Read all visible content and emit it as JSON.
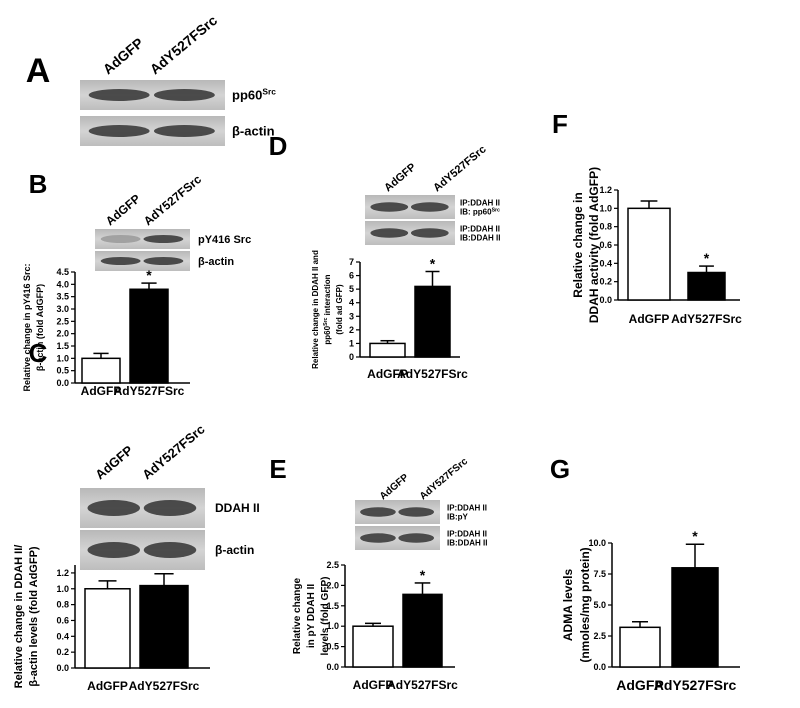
{
  "chart_data": [
    {
      "type": "blot",
      "panel": "A",
      "lanes": [
        "AdGFP",
        "AdY527FSrc"
      ],
      "blot_labels": [
        [
          [
            "pp60",
            "Src"
          ]
        ],
        [
          "β-actin"
        ]
      ]
    },
    {
      "type": "bar",
      "panel": "B",
      "lanes": [
        "AdGFP",
        "AdY527FSrc"
      ],
      "blot_labels": [
        [
          "pY416 Src"
        ],
        [
          "β-actin"
        ]
      ],
      "ylabel": [
        "Relative change in pY416 Src:",
        "β-actin (fold AdGFP)"
      ],
      "categories": [
        "AdGFP",
        "AdY527FSrc"
      ],
      "values": [
        1.0,
        3.8
      ],
      "errors": [
        0.2,
        0.25
      ],
      "value_annotations": [
        null,
        "*"
      ],
      "colors": [
        "#ffffff",
        "#000000"
      ],
      "ylim": [
        0,
        4.5
      ],
      "yticks": [
        {
          "value": 0,
          "label": "0.0"
        },
        {
          "value": 0.5,
          "label": "0.5"
        },
        {
          "value": 1,
          "label": "1.0"
        },
        {
          "value": 1.5,
          "label": "1.5"
        },
        {
          "value": 2,
          "label": "2.0"
        },
        {
          "value": 2.5,
          "label": "2.5"
        },
        {
          "value": 3,
          "label": "3.0"
        },
        {
          "value": 3.5,
          "label": "3.5"
        },
        {
          "value": 4,
          "label": "4.0"
        },
        {
          "value": 4.5,
          "label": "4.5"
        }
      ]
    },
    {
      "type": "bar",
      "panel": "C",
      "lanes": [
        "AdGFP",
        "AdY527FSrc"
      ],
      "blot_labels": [
        [
          "DDAH II"
        ],
        [
          "β-actin"
        ]
      ],
      "ylabel": [
        "Relative change in DDAH II/",
        "β-actin levels (fold AdGFP)"
      ],
      "categories": [
        "AdGFP",
        "AdY527FSrc"
      ],
      "values": [
        1.0,
        1.04
      ],
      "errors": [
        0.1,
        0.15
      ],
      "value_annotations": [
        null,
        null
      ],
      "colors": [
        "#ffffff",
        "#000000"
      ],
      "ylim": [
        0,
        1.3
      ],
      "yticks": [
        {
          "value": 0,
          "label": "0.0"
        },
        {
          "value": 0.2,
          "label": "0.2"
        },
        {
          "value": 0.4,
          "label": "0.4"
        },
        {
          "value": 0.6,
          "label": "0.6"
        },
        {
          "value": 0.8,
          "label": "0.8"
        },
        {
          "value": 1,
          "label": "1.0"
        },
        {
          "value": 1.2,
          "label": "1.2"
        }
      ]
    },
    {
      "type": "bar",
      "panel": "D",
      "lanes": [
        "AdGFP",
        "AdY527FSrc"
      ],
      "blot_labels": [
        [
          "IP:DDAH II",
          [
            "IB: pp60",
            "Src"
          ]
        ],
        [
          "IP:DDAH II",
          "IB:DDAH II"
        ]
      ],
      "ylabel": [
        "Relative change in DDAH II and",
        [
          "pp60",
          "Src",
          " interaction"
        ],
        "(fold ad GFP)"
      ],
      "categories": [
        "AdGFP",
        "AdY527FSrc"
      ],
      "values": [
        1.0,
        5.2
      ],
      "errors": [
        0.2,
        1.1
      ],
      "value_annotations": [
        null,
        "*"
      ],
      "colors": [
        "#ffffff",
        "#000000"
      ],
      "ylim": [
        0,
        7
      ],
      "yticks": [
        0,
        1,
        2,
        3,
        4,
        5,
        6,
        7
      ]
    },
    {
      "type": "bar",
      "panel": "E",
      "lanes": [
        "AdGFP",
        "AdY527FSrc"
      ],
      "blot_labels": [
        [
          "IP:DDAH II",
          "IB:pY"
        ],
        [
          "IP:DDAH II",
          "IB:DDAH II"
        ]
      ],
      "ylabel": [
        "Relative change",
        "in pY DDAH II",
        "levels (fold GFP)"
      ],
      "categories": [
        "AdGFP",
        "AdY527FSrc"
      ],
      "values": [
        1.0,
        1.78
      ],
      "errors": [
        0.07,
        0.28
      ],
      "value_annotations": [
        null,
        "*"
      ],
      "colors": [
        "#ffffff",
        "#000000"
      ],
      "ylim": [
        0,
        2.5
      ],
      "yticks": [
        {
          "value": 0,
          "label": "0.0"
        },
        {
          "value": 0.5,
          "label": "0.5"
        },
        {
          "value": 1,
          "label": "1.0"
        },
        {
          "value": 1.5,
          "label": "1.5"
        },
        {
          "value": 2,
          "label": "2.0"
        },
        {
          "value": 2.5,
          "label": "2.5"
        }
      ]
    },
    {
      "type": "bar",
      "panel": "F",
      "ylabel": [
        "Relative change in",
        "DDAH activity (fold AdGFP)"
      ],
      "categories": [
        "AdGFP",
        "AdY527FSrc"
      ],
      "values": [
        1.0,
        0.3
      ],
      "errors": [
        0.08,
        0.07
      ],
      "value_annotations": [
        null,
        "*"
      ],
      "colors": [
        "#ffffff",
        "#000000"
      ],
      "ylim": [
        0,
        1.2
      ],
      "yticks": [
        {
          "value": 0,
          "label": "0.0"
        },
        {
          "value": 0.2,
          "label": "0.2"
        },
        {
          "value": 0.4,
          "label": "0.4"
        },
        {
          "value": 0.6,
          "label": "0.6"
        },
        {
          "value": 0.8,
          "label": "0.8"
        },
        {
          "value": 1,
          "label": "1.0"
        },
        {
          "value": 1.2,
          "label": "1.2"
        }
      ]
    },
    {
      "type": "bar",
      "panel": "G",
      "ylabel": [
        "ADMA levels",
        "(nmoles/mg protein)"
      ],
      "categories": [
        "AdGFP",
        "AdY527FSrc"
      ],
      "values": [
        3.2,
        8.0
      ],
      "errors": [
        0.45,
        1.9
      ],
      "value_annotations": [
        null,
        "*"
      ],
      "colors": [
        "#ffffff",
        "#000000"
      ],
      "ylim": [
        0,
        10
      ],
      "yticks": [
        {
          "value": 0,
          "label": "0.0"
        },
        {
          "value": 2.5,
          "label": "2.5"
        },
        {
          "value": 5,
          "label": "5.0"
        },
        {
          "value": 7.5,
          "label": "7.5"
        },
        {
          "value": 10,
          "label": "10.0"
        }
      ]
    }
  ]
}
